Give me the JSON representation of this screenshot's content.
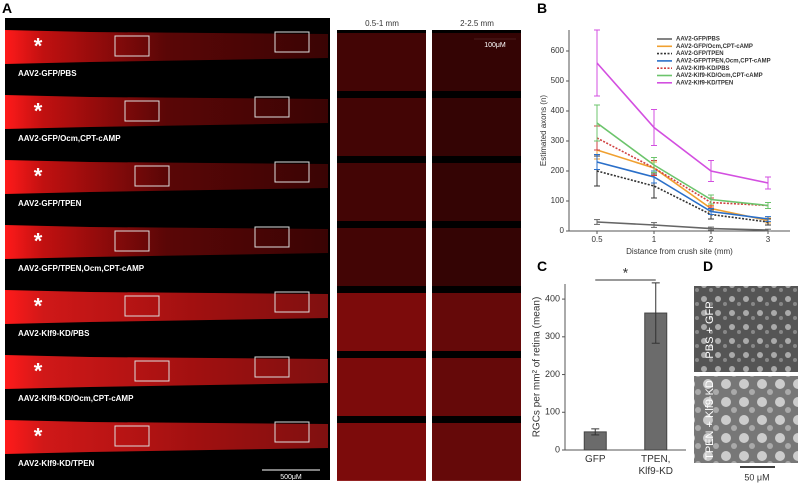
{
  "figure": {
    "panel_labels": [
      "A",
      "B",
      "C",
      "D"
    ],
    "a": {
      "strip_labels": [
        "AAV2-GFP/PBS",
        "AAV2-GFP/Ocm,CPT-cAMP",
        "AAV2-GFP/TPEN",
        "AAV2-GFP/TPEN,Ocm,CPT-cAMP",
        "AAV2-Klf9-KD/PBS",
        "AAV2-Klf9-KD/Ocm,CPT-cAMP",
        "AAV2-Klf9-KD/TPEN"
      ],
      "asterisk": "*",
      "col_headers": [
        "0.5-1 mm",
        "2-2.5 mm"
      ],
      "scale_crop": "100μM",
      "scale_strip": "500μM"
    },
    "d": {
      "row_labels": [
        "PBS + GFP",
        "TPEN + Klf9-KD"
      ],
      "scale": "50 μM"
    }
  },
  "chart_data": [
    {
      "type": "line",
      "x_label": "Distance from crush site (mm)",
      "y_label": "Estimated axons (n)",
      "categories": [
        "0.5",
        "1",
        "2",
        "3"
      ],
      "ylim": [
        0,
        670
      ],
      "yticks": [
        0,
        100,
        200,
        300,
        400,
        500,
        600
      ],
      "legend": "upper right",
      "series": [
        {
          "name": "AAV2-GFP/PBS",
          "color": "#666666",
          "style": "solid",
          "values": [
            30,
            20,
            8,
            3
          ],
          "errors": [
            8,
            8,
            5,
            3
          ]
        },
        {
          "name": "AAV2-GFP/Ocm,CPT-cAMP",
          "color": "#f0a030",
          "style": "solid",
          "values": [
            270,
            210,
            75,
            35
          ],
          "errors": [
            30,
            20,
            10,
            8
          ]
        },
        {
          "name": "AAV2-GFP/TPEN",
          "color": "#333333",
          "style": "dotted",
          "values": [
            200,
            150,
            55,
            30
          ],
          "errors": [
            50,
            40,
            15,
            10
          ]
        },
        {
          "name": "AAV2-GFP/TPEN,Ocm,CPT-cAMP",
          "color": "#2a6fc9",
          "style": "solid",
          "values": [
            230,
            180,
            65,
            40
          ],
          "errors": [
            25,
            20,
            10,
            8
          ]
        },
        {
          "name": "AAV2-Klf9-KD/PBS",
          "color": "#d04040",
          "style": "dotted",
          "values": [
            310,
            210,
            95,
            85
          ],
          "errors": [
            40,
            25,
            15,
            10
          ]
        },
        {
          "name": "AAV2-Klf9-KD/Ocm,CPT-cAMP",
          "color": "#6cc46c",
          "style": "solid",
          "values": [
            360,
            220,
            105,
            85
          ],
          "errors": [
            60,
            25,
            15,
            10
          ]
        },
        {
          "name": "AAV2-Klf9-KD/TPEN",
          "color": "#d34fe0",
          "style": "solid",
          "values": [
            560,
            345,
            200,
            160
          ],
          "errors": [
            110,
            60,
            35,
            20
          ]
        }
      ]
    },
    {
      "type": "bar",
      "y_label": "RGCs per mm² of retina (mean)",
      "categories": [
        "GFP",
        "TPEN,\nKlf9-KD"
      ],
      "values": [
        48,
        363
      ],
      "errors": [
        8,
        80
      ],
      "color": "#6b6b6b",
      "ylim": [
        0,
        440
      ],
      "yticks": [
        0,
        100,
        200,
        300,
        400
      ],
      "significance": "*"
    }
  ]
}
